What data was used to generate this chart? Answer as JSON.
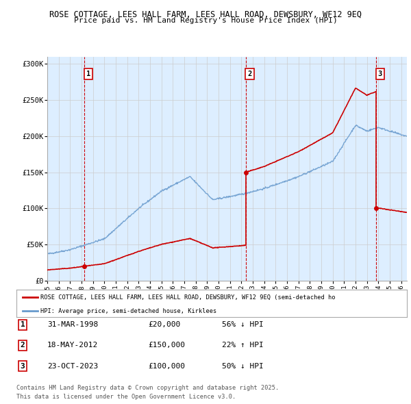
{
  "title": "ROSE COTTAGE, LEES HALL FARM, LEES HALL ROAD, DEWSBURY, WF12 9EQ",
  "subtitle": "Price paid vs. HM Land Registry's House Price Index (HPI)",
  "sale_dates": [
    1998.25,
    2012.38,
    2023.81
  ],
  "sale_prices": [
    20000,
    150000,
    100000
  ],
  "sale_labels": [
    "1",
    "2",
    "3"
  ],
  "sale_date_strs": [
    "31-MAR-1998",
    "18-MAY-2012",
    "23-OCT-2023"
  ],
  "sale_price_strs": [
    "£20,000",
    "£150,000",
    "£100,000"
  ],
  "sale_hpi_strs": [
    "56% ↓ HPI",
    "22% ↑ HPI",
    "50% ↓ HPI"
  ],
  "legend_property": "ROSE COTTAGE, LEES HALL FARM, LEES HALL ROAD, DEWSBURY, WF12 9EQ (semi-detached ho",
  "legend_hpi": "HPI: Average price, semi-detached house, Kirklees",
  "footnote1": "Contains HM Land Registry data © Crown copyright and database right 2025.",
  "footnote2": "This data is licensed under the Open Government Licence v3.0.",
  "property_color": "#cc0000",
  "hpi_color": "#6699cc",
  "grid_color": "#cccccc",
  "dashed_color": "#cc0000",
  "background_color": "#ffffff",
  "highlight_color": "#ddeeff",
  "ylim": [
    0,
    310000
  ],
  "xlim": [
    1995,
    2026.5
  ],
  "yticks": [
    0,
    50000,
    100000,
    150000,
    200000,
    250000,
    300000
  ],
  "ytick_labels": [
    "£0",
    "£50K",
    "£100K",
    "£150K",
    "£200K",
    "£250K",
    "£300K"
  ]
}
